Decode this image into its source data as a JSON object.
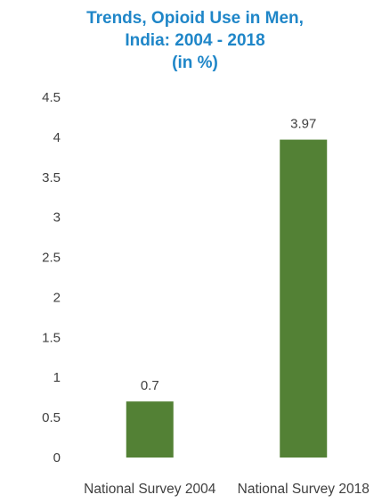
{
  "chart_data": {
    "type": "bar",
    "title": [
      "Trends, Opioid Use in Men,",
      "India: 2004 - 2018",
      "(in %)"
    ],
    "categories": [
      "National Survey 2004",
      "National Survey 2018"
    ],
    "values": [
      0.7,
      3.97
    ],
    "data_labels": [
      "0.7",
      "3.97"
    ],
    "yticks": [
      0,
      0.5,
      1,
      1.5,
      2,
      2.5,
      3,
      3.5,
      4,
      4.5
    ],
    "ytick_labels": [
      "0",
      "0.5",
      "1",
      "1.5",
      "2",
      "2.5",
      "3",
      "3.5",
      "4",
      "4.5"
    ],
    "ylim": [
      0,
      4.5
    ],
    "grid": false,
    "legend": "none",
    "bar_color": "#538135",
    "title_color": "#1f86c8",
    "text_color": "#404040"
  }
}
